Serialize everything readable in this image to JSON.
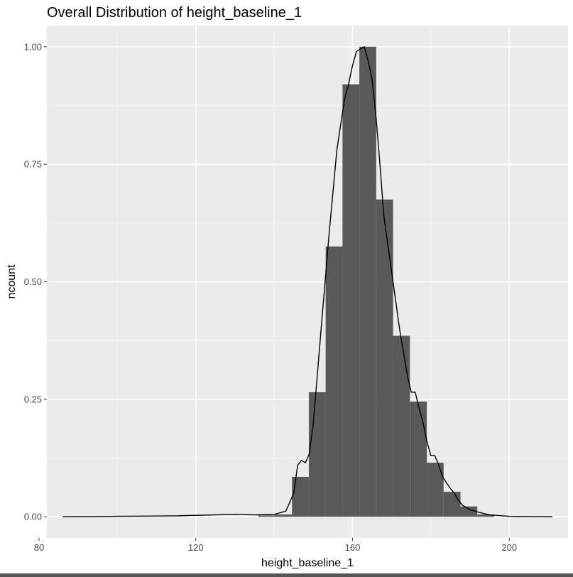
{
  "chart_data": {
    "type": "bar",
    "title": "Overall Distribution of height_baseline_1",
    "xlabel": "height_baseline_1",
    "ylabel": "ncount",
    "xlim": [
      82,
      215
    ],
    "ylim": [
      -0.045,
      1.045
    ],
    "x_ticks": [
      80,
      120,
      160,
      200
    ],
    "y_ticks": [
      0.0,
      0.25,
      0.5,
      0.75,
      1.0
    ],
    "x_tick_labels": [
      "80",
      "120",
      "160",
      "200"
    ],
    "y_tick_labels": [
      "0.00",
      "0.25",
      "0.50",
      "0.75",
      "1.00"
    ],
    "grid": true,
    "legend": "none",
    "bin_width": 4.3,
    "bins": [
      {
        "x": 146.7,
        "value": 0.085
      },
      {
        "x": 151.0,
        "value": 0.265
      },
      {
        "x": 155.3,
        "value": 0.575
      },
      {
        "x": 159.6,
        "value": 0.92
      },
      {
        "x": 163.9,
        "value": 1.0
      },
      {
        "x": 168.2,
        "value": 0.675
      },
      {
        "x": 172.5,
        "value": 0.385
      },
      {
        "x": 176.8,
        "value": 0.245
      },
      {
        "x": 181.1,
        "value": 0.115
      },
      {
        "x": 185.4,
        "value": 0.053
      },
      {
        "x": 189.7,
        "value": 0.022
      },
      {
        "x": 194.0,
        "value": 0.005
      },
      {
        "x": 142.4,
        "value": 0.005
      },
      {
        "x": 138.1,
        "value": 0.003
      }
    ],
    "density_line": {
      "x": [
        86,
        100,
        115,
        125,
        130,
        135,
        140,
        143,
        145,
        146,
        147,
        148,
        149,
        150,
        152,
        154,
        156,
        158,
        159,
        160,
        161,
        162,
        163,
        164,
        165,
        166,
        167,
        168,
        170,
        172,
        174,
        175,
        176,
        177,
        178,
        179,
        180,
        181,
        182,
        183,
        184,
        185,
        186,
        187,
        188,
        190,
        192,
        195,
        200,
        211
      ],
      "y": [
        0.0,
        0.001,
        0.002,
        0.004,
        0.005,
        0.004,
        0.005,
        0.012,
        0.05,
        0.11,
        0.12,
        0.115,
        0.135,
        0.2,
        0.4,
        0.6,
        0.78,
        0.89,
        0.92,
        0.96,
        0.99,
        0.995,
        1.0,
        0.97,
        0.93,
        0.85,
        0.75,
        0.64,
        0.52,
        0.4,
        0.3,
        0.265,
        0.265,
        0.23,
        0.2,
        0.16,
        0.13,
        0.13,
        0.11,
        0.085,
        0.072,
        0.06,
        0.05,
        0.035,
        0.025,
        0.015,
        0.01,
        0.004,
        0.001,
        0.0
      ]
    }
  }
}
